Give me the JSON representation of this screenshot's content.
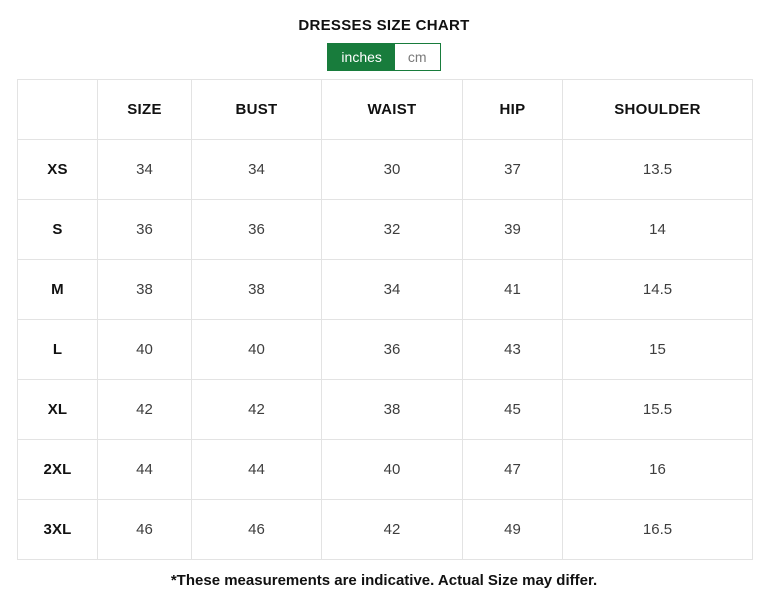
{
  "page": {
    "title": "DRESSES SIZE CHART",
    "footnote": "*These measurements are indicative. Actual Size may differ."
  },
  "unit_toggle": {
    "options": [
      {
        "label": "inches",
        "selected": true
      },
      {
        "label": "cm",
        "selected": false
      }
    ]
  },
  "colors": {
    "accent_green": "#187c3c",
    "border_gray": "#e3e3e3",
    "value_text": "#3e3e3e",
    "heading_text": "#111111"
  },
  "table": {
    "headers": [
      "",
      "SIZE",
      "BUST",
      "WAIST",
      "HIP",
      "SHOULDER"
    ],
    "rows": [
      {
        "label": "XS",
        "values": [
          "34",
          "34",
          "30",
          "37",
          "13.5"
        ]
      },
      {
        "label": "S",
        "values": [
          "36",
          "36",
          "32",
          "39",
          "14"
        ]
      },
      {
        "label": "M",
        "values": [
          "38",
          "38",
          "34",
          "41",
          "14.5"
        ]
      },
      {
        "label": "L",
        "values": [
          "40",
          "40",
          "36",
          "43",
          "15"
        ]
      },
      {
        "label": "XL",
        "values": [
          "42",
          "42",
          "38",
          "45",
          "15.5"
        ]
      },
      {
        "label": "2XL",
        "values": [
          "44",
          "44",
          "40",
          "47",
          "16"
        ]
      },
      {
        "label": "3XL",
        "values": [
          "46",
          "46",
          "42",
          "49",
          "16.5"
        ]
      }
    ]
  }
}
